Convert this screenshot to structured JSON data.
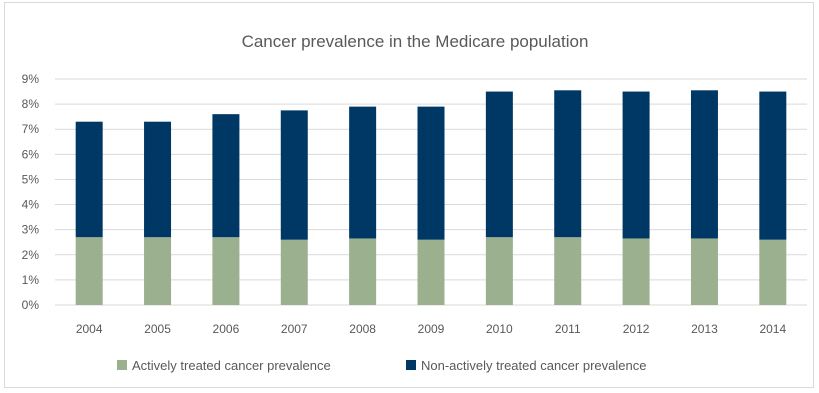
{
  "chart_data": {
    "type": "bar",
    "stacked": true,
    "title": "Cancer prevalence in the Medicare population",
    "categories": [
      "2004",
      "2005",
      "2006",
      "2007",
      "2008",
      "2009",
      "2010",
      "2011",
      "2012",
      "2013",
      "2014"
    ],
    "series": [
      {
        "name": "Actively treated cancer prevalence",
        "color": "#9bb08f",
        "values": [
          2.7,
          2.7,
          2.7,
          2.6,
          2.65,
          2.6,
          2.7,
          2.7,
          2.65,
          2.65,
          2.6
        ]
      },
      {
        "name": "Non-actively treated cancer prevalence",
        "color": "#003865",
        "values": [
          4.6,
          4.6,
          4.9,
          5.15,
          5.25,
          5.3,
          5.8,
          5.85,
          5.85,
          5.9,
          5.9
        ]
      }
    ],
    "xlabel": "",
    "ylabel": "",
    "ylim": [
      0,
      9
    ],
    "yticks": [
      "0%",
      "1%",
      "2%",
      "3%",
      "4%",
      "5%",
      "6%",
      "7%",
      "8%",
      "9%"
    ],
    "grid": true,
    "legend": "bottom"
  }
}
